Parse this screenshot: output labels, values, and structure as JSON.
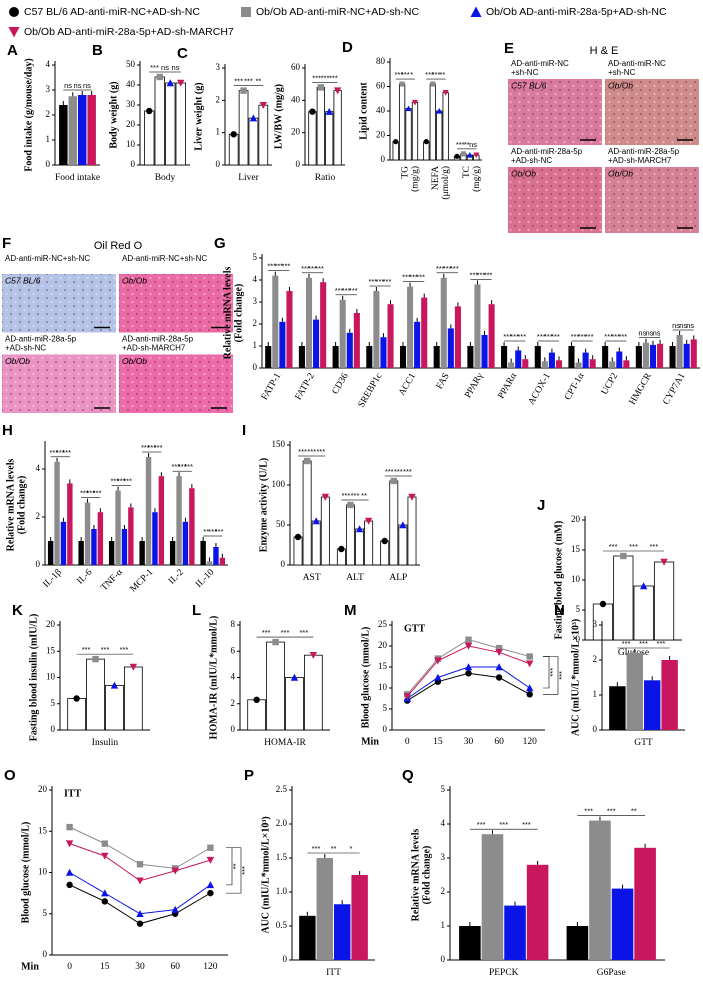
{
  "legend": [
    {
      "name": "C57 BL/6 AD-anti-miR-NC+AD-sh-NC",
      "color": "#000000",
      "marker": "circle"
    },
    {
      "name": "Ob/Ob AD-anti-miR-NC+AD-sh-NC",
      "color": "#8c8c8c",
      "marker": "square"
    },
    {
      "name": "Ob/Ob AD-anti-miR-28a-5p+AD-sh-NC",
      "color": "#0a14e6",
      "marker": "triangle"
    },
    {
      "name": "Ob/Ob AD-anti-miR-28a-5p+AD-sh-MARCH7",
      "color": "#c8175d",
      "marker": "triangle-down"
    }
  ],
  "chart_data": [
    {
      "type": "bar",
      "label": "A",
      "ylabel": "Food intake (g/mouse/day)",
      "bar_style": "filled",
      "categories": [
        "Food intake"
      ],
      "series": [
        {
          "color": "#000000",
          "values": [
            2.4
          ]
        },
        {
          "color": "#8c8c8c",
          "values": [
            2.75
          ]
        },
        {
          "color": "#0a14e6",
          "values": [
            2.8
          ]
        },
        {
          "color": "#c8175d",
          "values": [
            2.8
          ]
        }
      ],
      "ylim": [
        0,
        4
      ],
      "yticks": [
        0,
        1,
        2,
        3,
        4
      ],
      "significance": [
        [
          "ns",
          "ns",
          "ns"
        ]
      ]
    },
    {
      "type": "bar",
      "label": "B",
      "ylabel": "Body weight (g)",
      "bar_style": "outline",
      "categories": [
        "Body"
      ],
      "series": [
        {
          "color": "#000000",
          "values": [
            27
          ]
        },
        {
          "color": "#8c8c8c",
          "values": [
            44
          ]
        },
        {
          "color": "#0a14e6",
          "values": [
            41
          ]
        },
        {
          "color": "#c8175d",
          "values": [
            41
          ]
        }
      ],
      "ylim": [
        0,
        50
      ],
      "yticks": [
        0,
        10,
        20,
        30,
        40,
        50
      ],
      "significance": [
        [
          "***",
          "ns",
          "ns"
        ]
      ]
    },
    {
      "type": "bar",
      "label": "C",
      "ylabel": "Liver weight (g)",
      "bar_style": "outline",
      "categories": [
        "Liver"
      ],
      "series": [
        {
          "color": "#000000",
          "values": [
            0.95
          ]
        },
        {
          "color": "#8c8c8c",
          "values": [
            2.3
          ]
        },
        {
          "color": "#0a14e6",
          "values": [
            1.45
          ]
        },
        {
          "color": "#c8175d",
          "values": [
            1.85
          ]
        }
      ],
      "ylim": [
        0,
        3
      ],
      "yticks": [
        0,
        1,
        2,
        3
      ],
      "significance": [
        [
          "***",
          "***",
          "**"
        ]
      ]
    },
    {
      "type": "bar",
      "ylabel": "LW/BW (mg/g)",
      "bar_style": "outline",
      "categories": [
        "Ratio"
      ],
      "series": [
        {
          "color": "#000000",
          "values": [
            33
          ]
        },
        {
          "color": "#8c8c8c",
          "values": [
            48
          ]
        },
        {
          "color": "#0a14e6",
          "values": [
            33
          ]
        },
        {
          "color": "#c8175d",
          "values": [
            46
          ]
        }
      ],
      "ylim": [
        0,
        60
      ],
      "yticks": [
        0,
        20,
        40,
        60
      ],
      "significance": [
        [
          "***",
          "***",
          "***"
        ]
      ]
    },
    {
      "type": "bar",
      "label": "D",
      "ylabel": "Lipid content",
      "bar_style": "outline",
      "categories": [
        "TG",
        "NEFA",
        "TC"
      ],
      "category_units": [
        "(mg/g)",
        "(μmol/g)",
        "(mg/g)"
      ],
      "series": [
        {
          "color": "#000000",
          "values": [
            15,
            15,
            3
          ]
        },
        {
          "color": "#8c8c8c",
          "values": [
            62,
            62,
            5
          ]
        },
        {
          "color": "#0a14e6",
          "values": [
            42,
            40,
            4
          ]
        },
        {
          "color": "#c8175d",
          "values": [
            47,
            55,
            4
          ]
        }
      ],
      "ylim": [
        0,
        80
      ],
      "yticks": [
        0,
        20,
        40,
        60,
        80
      ],
      "significance": [
        [
          "***",
          "***",
          "*"
        ],
        [
          "***",
          "***",
          "**"
        ],
        [
          "***",
          "**",
          "ns"
        ]
      ]
    },
    {
      "type": "image",
      "label": "E",
      "title": "H & E",
      "images": [
        {
          "caption": [
            "AD-anti-miR-NC",
            "+sh-NC"
          ],
          "tag": "C57 BL/6",
          "color": "#d97a9c"
        },
        {
          "caption": [
            "AD-anti-miR-NC",
            "+sh-NC"
          ],
          "tag": "Ob/Ob",
          "color": "#cf8a8a"
        },
        {
          "caption": [
            "AD-anti-miR-28a-5p",
            "+AD-sh-NC"
          ],
          "tag": "Ob/Ob",
          "color": "#d9708f"
        },
        {
          "caption": [
            "AD-anti-miR-28a-5p",
            "+AD-sh-MARCH7"
          ],
          "tag": "Ob/Ob",
          "color": "#d68095"
        }
      ]
    },
    {
      "type": "image",
      "label": "F",
      "title": "Oil Red O",
      "images": [
        {
          "caption": [
            "AD-anti-miR-NC+sh-NC"
          ],
          "tag": "C57 BL/6",
          "color": "#b4c2e6"
        },
        {
          "caption": [
            "AD-anti-miR-NC+sh-NC"
          ],
          "tag": "Ob/Ob",
          "color": "#ec6aa4"
        },
        {
          "caption": [
            "AD-anti-miR-28a-5p",
            "+AD-sh-NC"
          ],
          "tag": "Ob/Ob",
          "color": "#ea93c2"
        },
        {
          "caption": [
            "AD-anti-miR-28a-5p",
            "+AD-sh-MARCH7"
          ],
          "tag": "Ob/Ob",
          "color": "#ec6aa8"
        }
      ]
    },
    {
      "type": "bar",
      "label": "G",
      "ylabel": [
        "Relative mRNA levels",
        "(Fold change)"
      ],
      "bar_style": "filled",
      "categories": [
        "FATP-1",
        "FATP-2",
        "CD36",
        "SREBP1c",
        "ACC1",
        "FAS",
        "PPARγ",
        "PPARα",
        "ACOX-1",
        "CPT-1α",
        "UCP2",
        "HMGCR",
        "CYP7A1"
      ],
      "series": [
        {
          "color": "#000000",
          "values": [
            1,
            1,
            1,
            1,
            1,
            1,
            1,
            1,
            1,
            1,
            1,
            1,
            1
          ]
        },
        {
          "color": "#8c8c8c",
          "values": [
            4.2,
            4.1,
            3.1,
            3.5,
            3.7,
            4.1,
            3.8,
            0.25,
            0.3,
            0.25,
            0.3,
            1.15,
            1.5
          ]
        },
        {
          "color": "#0a14e6",
          "values": [
            2.1,
            2.2,
            1.6,
            1.4,
            2.1,
            1.8,
            1.5,
            0.8,
            0.7,
            0.7,
            0.75,
            1.05,
            1.1
          ]
        },
        {
          "color": "#c8175d",
          "values": [
            3.5,
            3.9,
            2.5,
            2.9,
            3.2,
            2.8,
            2.9,
            0.4,
            0.35,
            0.4,
            0.35,
            1.1,
            1.3
          ]
        }
      ],
      "ylim": [
        0,
        5
      ],
      "yticks": [
        0,
        1,
        2,
        3,
        4,
        5
      ],
      "significance": [
        [
          "***",
          "***",
          "***"
        ],
        [
          "***",
          "***",
          "***"
        ],
        [
          "***",
          "***",
          "***"
        ],
        [
          "***",
          "***",
          "***"
        ],
        [
          "***",
          "***",
          "***"
        ],
        [
          "***",
          "***",
          "***"
        ],
        [
          "***",
          "***",
          "***"
        ],
        [
          "***",
          "***",
          "***"
        ],
        [
          "***",
          "***",
          "***"
        ],
        [
          "***",
          "***",
          "***"
        ],
        [
          "***",
          "***",
          "***"
        ],
        [
          "ns",
          "ns",
          "ns"
        ],
        [
          "ns",
          "ns",
          "ns"
        ]
      ]
    },
    {
      "type": "bar",
      "label": "H",
      "ylabel": [
        "Relative mRNA levels",
        "(Fold change)"
      ],
      "bar_style": "filled",
      "categories": [
        "IL-1β",
        "IL-6",
        "TNF-α",
        "MCP-1",
        "IL-2",
        "IL-10"
      ],
      "series": [
        {
          "color": "#000000",
          "values": [
            1,
            1,
            1,
            1,
            1,
            1
          ]
        },
        {
          "color": "#8c8c8c",
          "values": [
            4.3,
            2.6,
            3.1,
            4.5,
            3.7,
            0.15
          ]
        },
        {
          "color": "#0a14e6",
          "values": [
            1.8,
            1.5,
            1.5,
            2.2,
            1.8,
            0.75
          ]
        },
        {
          "color": "#c8175d",
          "values": [
            3.4,
            2.2,
            2.4,
            3.7,
            3.2,
            0.3
          ]
        }
      ],
      "ylim": [
        0,
        5
      ],
      "yticks": [
        0,
        2,
        4
      ],
      "significance": [
        [
          "***",
          "***",
          "***"
        ],
        [
          "***",
          "***",
          "***"
        ],
        [
          "***",
          "***",
          "***"
        ],
        [
          "***",
          "***",
          "***"
        ],
        [
          "***",
          "***",
          "***"
        ],
        [
          "**",
          "***",
          "***"
        ]
      ]
    },
    {
      "type": "bar",
      "label": "I",
      "ylabel": "Enzyme activity (U/L)",
      "bar_style": "outline",
      "categories": [
        "AST",
        "ALT",
        "ALP"
      ],
      "series": [
        {
          "color": "#000000",
          "values": [
            35,
            20,
            30
          ]
        },
        {
          "color": "#8c8c8c",
          "values": [
            130,
            75,
            105
          ]
        },
        {
          "color": "#0a14e6",
          "values": [
            55,
            45,
            50
          ]
        },
        {
          "color": "#c8175d",
          "values": [
            85,
            55,
            85
          ]
        }
      ],
      "ylim": [
        0,
        150
      ],
      "yticks": [
        0,
        50,
        100,
        150
      ],
      "significance": [
        [
          "***",
          "***",
          "***"
        ],
        [
          "***",
          "***",
          "**"
        ],
        [
          "***",
          "***",
          "***"
        ]
      ]
    },
    {
      "type": "bar",
      "label": "J",
      "ylabel": "Fasting blood glucose (mM)",
      "bar_style": "outline",
      "categories": [
        "Glucose"
      ],
      "series": [
        {
          "color": "#000000",
          "values": [
            6
          ]
        },
        {
          "color": "#8c8c8c",
          "values": [
            14
          ]
        },
        {
          "color": "#0a14e6",
          "values": [
            9
          ]
        },
        {
          "color": "#c8175d",
          "values": [
            13
          ]
        }
      ],
      "ylim": [
        0,
        20
      ],
      "yticks": [
        0,
        5,
        10,
        15,
        20
      ],
      "significance": [
        [
          "***",
          "***",
          "***"
        ]
      ]
    },
    {
      "type": "bar",
      "label": "K",
      "ylabel": "Fasting blood insulin (mIU/L)",
      "bar_style": "outline",
      "categories": [
        "Insulin"
      ],
      "series": [
        {
          "color": "#000000",
          "values": [
            6
          ]
        },
        {
          "color": "#8c8c8c",
          "values": [
            13.5
          ]
        },
        {
          "color": "#0a14e6",
          "values": [
            8.5
          ]
        },
        {
          "color": "#c8175d",
          "values": [
            12
          ]
        }
      ],
      "ylim": [
        0,
        20
      ],
      "yticks": [
        0,
        5,
        10,
        15,
        20
      ],
      "significance": [
        [
          "***",
          "***",
          "***"
        ]
      ]
    },
    {
      "type": "bar",
      "label": "L",
      "ylabel": "HOMA-IR (mIU/L*mmol/L)",
      "bar_style": "outline",
      "categories": [
        "HOMA-IR"
      ],
      "series": [
        {
          "color": "#000000",
          "values": [
            2.3
          ]
        },
        {
          "color": "#8c8c8c",
          "values": [
            6.7
          ]
        },
        {
          "color": "#0a14e6",
          "values": [
            4
          ]
        },
        {
          "color": "#c8175d",
          "values": [
            5.7
          ]
        }
      ],
      "ylim": [
        0,
        8
      ],
      "yticks": [
        0,
        2,
        4,
        6,
        8
      ],
      "significance": [
        [
          "***",
          "***",
          "***"
        ]
      ]
    },
    {
      "type": "line",
      "label": "M",
      "title": "GTT",
      "ylabel": "Blood glucose (mmol/L)",
      "xlabel": "Min",
      "categories": [
        "0",
        "15",
        "30",
        "60",
        "120"
      ],
      "series": [
        {
          "color": "#000000",
          "values": [
            7,
            11.5,
            13.5,
            12.5,
            8.5
          ]
        },
        {
          "color": "#8c8c8c",
          "values": [
            8.5,
            17,
            21.5,
            19.5,
            17.5
          ]
        },
        {
          "color": "#0a14e6",
          "values": [
            7.5,
            12.5,
            15,
            15,
            10
          ]
        },
        {
          "color": "#c8175d",
          "values": [
            8,
            16.5,
            20,
            18.5,
            15.8
          ]
        }
      ],
      "ylim": [
        0,
        25
      ],
      "yticks": [
        0,
        5,
        10,
        15,
        20,
        25
      ],
      "significance": [
        "***",
        "***"
      ]
    },
    {
      "type": "bar",
      "label": "N",
      "ylabel": "AUC (mIU/L*mmol/L×10³)",
      "bar_style": "filled",
      "categories": [
        "GTT"
      ],
      "series": [
        {
          "color": "#000000",
          "values": [
            1.25
          ]
        },
        {
          "color": "#8c8c8c",
          "values": [
            2.2
          ]
        },
        {
          "color": "#0a14e6",
          "values": [
            1.42
          ]
        },
        {
          "color": "#c8175d",
          "values": [
            2.0
          ]
        }
      ],
      "ylim": [
        0,
        3
      ],
      "yticks": [
        0,
        1,
        2,
        3
      ],
      "significance": [
        [
          "***",
          "***",
          "***"
        ]
      ]
    },
    {
      "type": "line",
      "label": "O",
      "title": "ITT",
      "ylabel": "Blood glucose (mmol/L)",
      "xlabel": "Min",
      "categories": [
        "0",
        "15",
        "30",
        "60",
        "120"
      ],
      "series": [
        {
          "color": "#000000",
          "values": [
            8.5,
            6.5,
            3.8,
            5,
            7.5
          ]
        },
        {
          "color": "#8c8c8c",
          "values": [
            15.5,
            13.5,
            11,
            10.5,
            13
          ]
        },
        {
          "color": "#0a14e6",
          "values": [
            10,
            7.5,
            5,
            5.5,
            8.5
          ]
        },
        {
          "color": "#c8175d",
          "values": [
            13.5,
            12,
            9,
            10.2,
            11.5
          ]
        }
      ],
      "ylim": [
        0,
        20
      ],
      "yticks": [
        0,
        5,
        10,
        15,
        20
      ],
      "significance": [
        "**",
        "***"
      ]
    },
    {
      "type": "bar",
      "label": "P",
      "ylabel": "AUC (mIU/L*mmol/L×10³)",
      "bar_style": "filled",
      "categories": [
        "ITT"
      ],
      "series": [
        {
          "color": "#000000",
          "values": [
            0.65
          ]
        },
        {
          "color": "#8c8c8c",
          "values": [
            1.5
          ]
        },
        {
          "color": "#0a14e6",
          "values": [
            0.82
          ]
        },
        {
          "color": "#c8175d",
          "values": [
            1.25
          ]
        }
      ],
      "ylim": [
        0,
        2.5
      ],
      "yticks": [
        0,
        0.5,
        {
          "value": 1,
          "label": "1.0"
        },
        1.5,
        {
          "value": 2,
          "label": "2.0"
        },
        2.5
      ],
      "significance": [
        [
          "***",
          "**",
          "*"
        ]
      ]
    },
    {
      "type": "bar",
      "label": "Q",
      "ylabel": [
        "Relative mRNA levels",
        "(Fold change)"
      ],
      "bar_style": "filled",
      "categories": [
        "PEPCK",
        "G6Pase"
      ],
      "series": [
        {
          "color": "#000000",
          "values": [
            1,
            1
          ]
        },
        {
          "color": "#8c8c8c",
          "values": [
            3.7,
            4.1
          ]
        },
        {
          "color": "#0a14e6",
          "values": [
            1.6,
            2.1
          ]
        },
        {
          "color": "#c8175d",
          "values": [
            2.8,
            3.3
          ]
        }
      ],
      "ylim": [
        0,
        5
      ],
      "yticks": [
        0,
        1,
        2,
        3,
        4,
        5
      ],
      "significance": [
        [
          "***",
          "***",
          "***"
        ],
        [
          "***",
          "***",
          "**"
        ]
      ]
    }
  ]
}
